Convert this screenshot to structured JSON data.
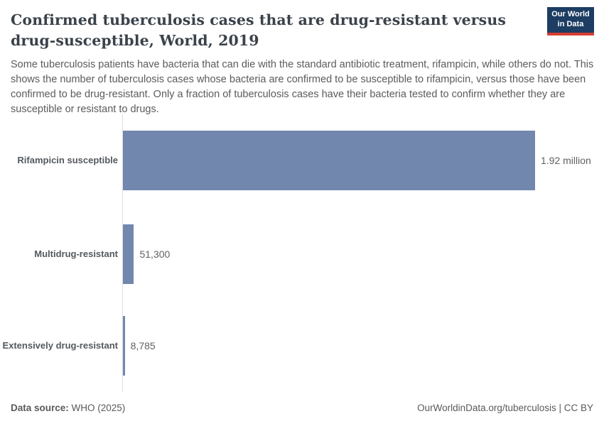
{
  "header": {
    "title": "Confirmed tuberculosis cases that are drug-resistant versus drug-susceptible, World, 2019",
    "subtitle": "Some tuberculosis patients have bacteria that can die with the standard antibiotic treatment, rifampicin, while others do not. This shows the number of tuberculosis cases whose bacteria are confirmed to be susceptible to rifampicin, versus those have been confirmed to be drug-resistant. Only a fraction of tuberculosis cases have their bacteria tested to confirm whether they are susceptible or resistant to drugs.",
    "logo": {
      "line1": "Our World",
      "line2": "in Data",
      "background_color": "#1d3d63",
      "stripe_color": "#d63e32"
    }
  },
  "chart_data": {
    "type": "bar",
    "orientation": "horizontal",
    "title": "Confirmed tuberculosis cases that are drug-resistant versus drug-susceptible, World, 2019",
    "entity": "World",
    "year": "2019",
    "categories": [
      "Rifampicin susceptible",
      "Multidrug-resistant",
      "Extensively drug-resistant"
    ],
    "values": [
      1920000,
      51300,
      8785
    ],
    "value_labels": [
      "1.92 million",
      "51,300",
      "8,785"
    ],
    "xlim": [
      0,
      1920000
    ],
    "grid": false,
    "legend": "none",
    "bar_color": "#7287ae"
  },
  "footer": {
    "source_label": "Data source:",
    "source_value": " WHO (2025)",
    "right_text": "OurWorldinData.org/tuberculosis | CC BY"
  }
}
